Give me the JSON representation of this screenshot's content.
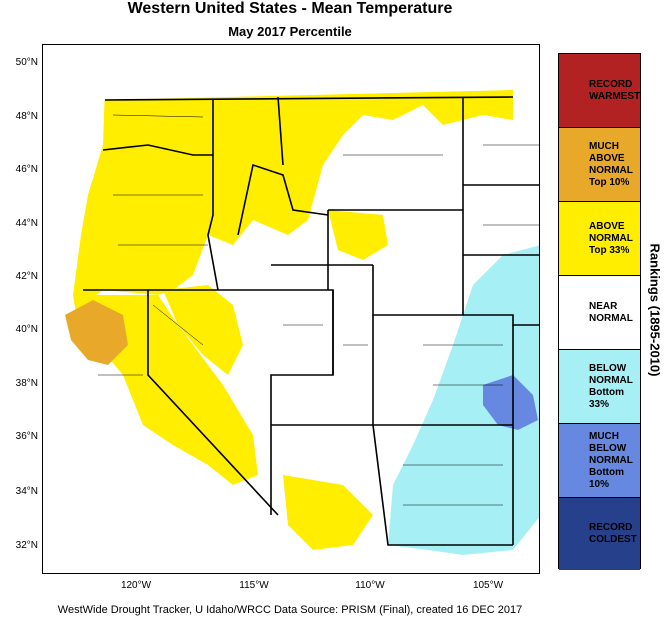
{
  "title": "Western United States - Mean Temperature",
  "subtitle": "May 2017 Percentile",
  "footer": "WestWide Drought Tracker, U Idaho/WRCC Data Source: PRISM (Final), created 16 DEC 2017",
  "ranking_label": "Rankings (1895-2010)",
  "lat_labels": [
    "50°N",
    "48°N",
    "46°N",
    "44°N",
    "42°N",
    "40°N",
    "38°N",
    "36°N",
    "34°N",
    "32°N"
  ],
  "lon_labels": [
    "120°W",
    "115°W",
    "110°W",
    "105°W"
  ],
  "legend": [
    {
      "label": "RECORD\nWARMEST",
      "color": "#b22222"
    },
    {
      "label": "MUCH\nABOVE\nNORMAL\nTop 10%",
      "color": "#e8a92a"
    },
    {
      "label": "ABOVE\nNORMAL\nTop 33%",
      "color": "#ffee00"
    },
    {
      "label": "NEAR\nNORMAL",
      "color": "#ffffff"
    },
    {
      "label": "BELOW\nNORMAL\nBottom 33%",
      "color": "#a6f0f5"
    },
    {
      "label": "MUCH\nBELOW\nNORMAL\nBottom 10%",
      "color": "#6688e0"
    },
    {
      "label": "RECORD\nCOLDEST",
      "color": "#27408b"
    }
  ]
}
